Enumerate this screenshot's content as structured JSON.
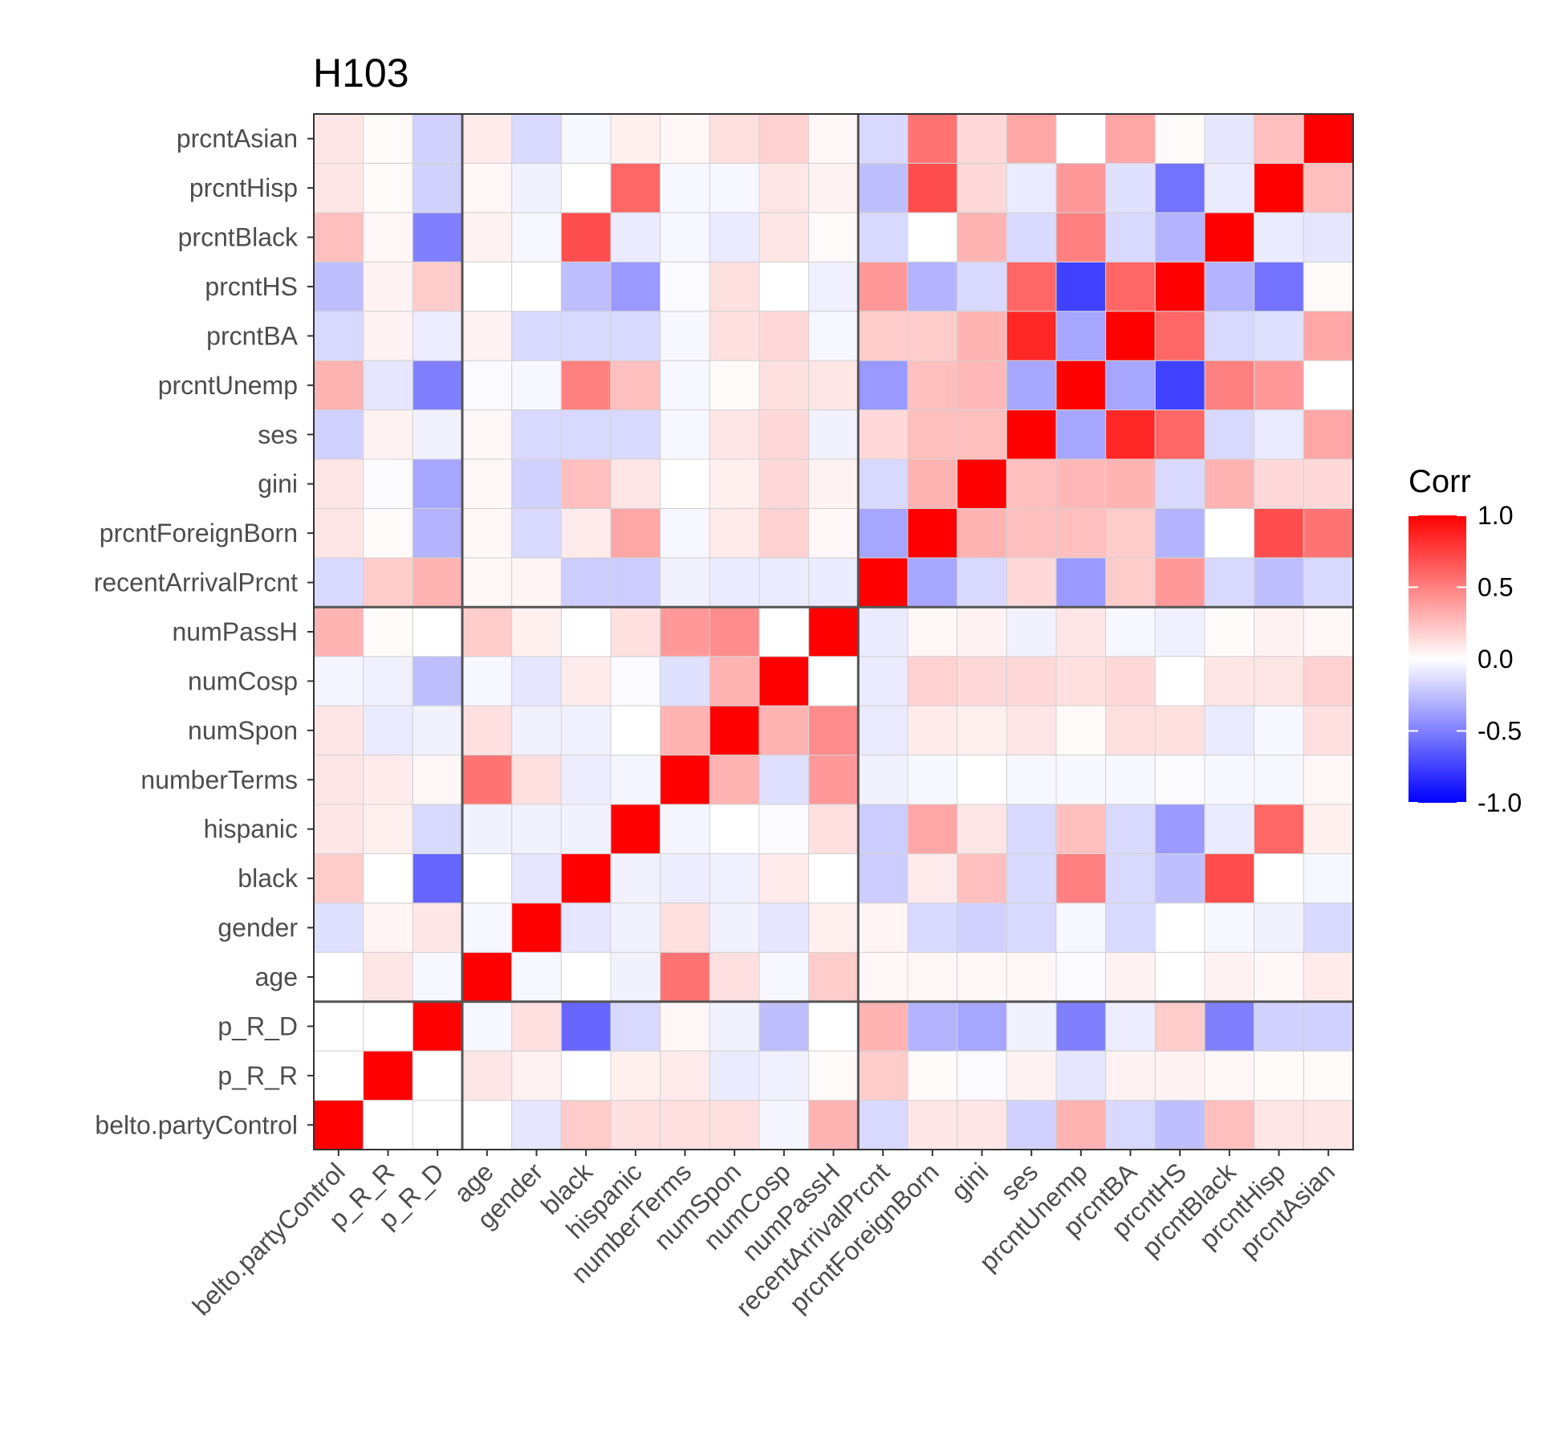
{
  "chart_data": {
    "type": "heatmap",
    "title": "H103",
    "xlabel": "",
    "ylabel": "",
    "variables": [
      "belto.partyControl",
      "p_R_R",
      "p_R_D",
      "age",
      "gender",
      "black",
      "hispanic",
      "numberTerms",
      "numSpon",
      "numCosp",
      "numPassH",
      "recentArrivalPrcnt",
      "prcntForeignBorn",
      "gini",
      "ses",
      "prcntUnemp",
      "prcntBA",
      "prcntHS",
      "prcntBlack",
      "prcntHisp",
      "prcntAsian"
    ],
    "group_boundaries_after_index": [
      2,
      10
    ],
    "legend": {
      "title": "Corr",
      "placement": "right",
      "range": [
        -1,
        1
      ],
      "ticks": [
        "1.0",
        "0.5",
        "0.0",
        "-0.5",
        "-1.0"
      ],
      "tick_values": [
        1.0,
        0.5,
        0.0,
        -0.5,
        -1.0
      ],
      "colors": {
        "low": "#0000ff",
        "mid": "#ffffff",
        "high": "#ff0000"
      }
    },
    "matrix": [
      [
        1.0,
        0.0,
        0.0,
        0.0,
        -0.1,
        0.2,
        0.12,
        0.12,
        0.12,
        -0.04,
        0.3,
        -0.15,
        0.1,
        0.1,
        -0.18,
        0.3,
        -0.15,
        -0.25,
        0.25,
        0.1,
        0.1
      ],
      [
        0.0,
        1.0,
        0.0,
        0.1,
        0.05,
        0.0,
        0.06,
        0.08,
        -0.08,
        -0.06,
        0.02,
        0.2,
        0.02,
        -0.02,
        0.05,
        -0.1,
        0.05,
        0.05,
        0.03,
        0.02,
        0.02
      ],
      [
        0.0,
        0.0,
        1.0,
        -0.03,
        0.12,
        -0.6,
        -0.15,
        0.03,
        -0.05,
        -0.25,
        0.0,
        0.3,
        -0.3,
        -0.35,
        -0.05,
        -0.5,
        -0.07,
        0.2,
        -0.5,
        -0.18,
        -0.18
      ],
      [
        0.0,
        0.1,
        -0.03,
        1.0,
        -0.03,
        0.0,
        -0.05,
        0.55,
        0.12,
        -0.03,
        0.2,
        0.03,
        0.03,
        0.03,
        0.03,
        -0.02,
        0.05,
        0.0,
        0.05,
        0.03,
        0.08
      ],
      [
        -0.12,
        0.04,
        0.1,
        -0.03,
        1.0,
        -0.1,
        -0.05,
        0.12,
        -0.05,
        -0.1,
        0.06,
        0.04,
        -0.15,
        -0.18,
        -0.15,
        -0.03,
        -0.15,
        0.0,
        -0.03,
        -0.05,
        -0.15
      ],
      [
        0.2,
        0.0,
        -0.6,
        0.0,
        -0.1,
        1.0,
        -0.05,
        -0.07,
        -0.06,
        0.08,
        0.0,
        -0.2,
        0.08,
        0.25,
        -0.15,
        0.5,
        -0.15,
        -0.25,
        0.7,
        0.0,
        -0.03
      ],
      [
        0.1,
        0.06,
        -0.15,
        -0.05,
        -0.05,
        -0.05,
        1.0,
        -0.04,
        0.0,
        -0.02,
        0.12,
        -0.2,
        0.35,
        0.1,
        -0.15,
        0.25,
        -0.15,
        -0.4,
        -0.08,
        0.6,
        0.06
      ],
      [
        0.1,
        0.08,
        0.03,
        0.55,
        0.12,
        -0.07,
        -0.04,
        1.0,
        0.3,
        -0.12,
        0.4,
        -0.05,
        -0.03,
        0.0,
        -0.03,
        -0.03,
        -0.03,
        -0.02,
        -0.03,
        -0.03,
        0.03
      ],
      [
        0.1,
        -0.08,
        -0.05,
        0.12,
        -0.05,
        -0.06,
        0.0,
        0.3,
        1.0,
        0.3,
        0.45,
        -0.08,
        0.08,
        0.06,
        0.1,
        0.02,
        0.12,
        0.12,
        -0.08,
        -0.03,
        0.12
      ],
      [
        -0.04,
        -0.06,
        -0.25,
        -0.03,
        -0.1,
        0.08,
        -0.02,
        -0.12,
        0.3,
        1.0,
        0.0,
        -0.08,
        0.18,
        0.15,
        0.15,
        0.12,
        0.15,
        0.0,
        0.1,
        0.1,
        0.18
      ],
      [
        0.3,
        0.02,
        0.0,
        0.2,
        0.06,
        0.0,
        0.12,
        0.4,
        0.45,
        0.0,
        1.0,
        -0.08,
        0.03,
        0.05,
        -0.05,
        0.1,
        -0.03,
        -0.06,
        0.02,
        0.05,
        0.03
      ],
      [
        -0.15,
        0.2,
        0.3,
        0.03,
        0.04,
        -0.2,
        -0.2,
        -0.05,
        -0.08,
        -0.08,
        -0.08,
        1.0,
        -0.35,
        -0.15,
        0.15,
        -0.4,
        0.2,
        0.4,
        -0.15,
        -0.25,
        -0.15
      ],
      [
        0.1,
        0.02,
        -0.3,
        0.03,
        -0.15,
        0.08,
        0.35,
        -0.03,
        0.08,
        0.18,
        0.03,
        -0.35,
        1.0,
        0.3,
        0.25,
        0.25,
        0.2,
        -0.3,
        0.0,
        0.7,
        0.55
      ],
      [
        0.1,
        -0.02,
        -0.35,
        0.03,
        -0.18,
        0.25,
        0.1,
        0.0,
        0.06,
        0.15,
        0.05,
        -0.15,
        0.3,
        1.0,
        0.25,
        0.28,
        0.3,
        -0.15,
        0.3,
        0.15,
        0.15
      ],
      [
        -0.18,
        0.05,
        -0.05,
        0.03,
        -0.15,
        -0.15,
        -0.15,
        -0.03,
        0.1,
        0.15,
        -0.05,
        0.15,
        0.25,
        0.25,
        1.0,
        -0.35,
        0.85,
        0.6,
        -0.15,
        -0.08,
        0.35
      ],
      [
        0.3,
        -0.1,
        -0.5,
        -0.02,
        -0.03,
        0.5,
        0.25,
        -0.03,
        0.02,
        0.12,
        0.1,
        -0.4,
        0.25,
        0.28,
        -0.35,
        1.0,
        -0.35,
        -0.75,
        0.5,
        0.4,
        0.0
      ],
      [
        -0.15,
        0.05,
        -0.07,
        0.05,
        -0.15,
        -0.15,
        -0.15,
        -0.03,
        0.12,
        0.15,
        -0.03,
        0.2,
        0.2,
        0.3,
        0.85,
        -0.35,
        1.0,
        0.6,
        -0.15,
        -0.12,
        0.35
      ],
      [
        -0.25,
        0.05,
        0.2,
        0.0,
        0.0,
        -0.25,
        -0.4,
        -0.02,
        0.12,
        0.0,
        -0.06,
        0.4,
        -0.3,
        -0.15,
        0.6,
        -0.75,
        0.6,
        1.0,
        -0.3,
        -0.55,
        0.02
      ],
      [
        0.25,
        0.03,
        -0.5,
        0.05,
        -0.03,
        0.7,
        -0.08,
        -0.03,
        -0.08,
        0.1,
        0.02,
        -0.15,
        0.0,
        0.3,
        -0.15,
        0.5,
        -0.15,
        -0.3,
        1.0,
        -0.08,
        -0.1
      ],
      [
        0.1,
        0.02,
        -0.18,
        0.03,
        -0.05,
        0.0,
        0.6,
        -0.03,
        -0.03,
        0.1,
        0.05,
        -0.25,
        0.7,
        0.15,
        -0.08,
        0.4,
        -0.12,
        -0.55,
        -0.08,
        1.0,
        0.25
      ],
      [
        0.1,
        0.02,
        -0.18,
        0.08,
        -0.15,
        -0.03,
        0.06,
        0.03,
        0.12,
        0.18,
        0.03,
        -0.15,
        0.55,
        0.15,
        0.35,
        0.0,
        0.35,
        0.02,
        -0.1,
        0.25,
        1.0
      ]
    ]
  }
}
